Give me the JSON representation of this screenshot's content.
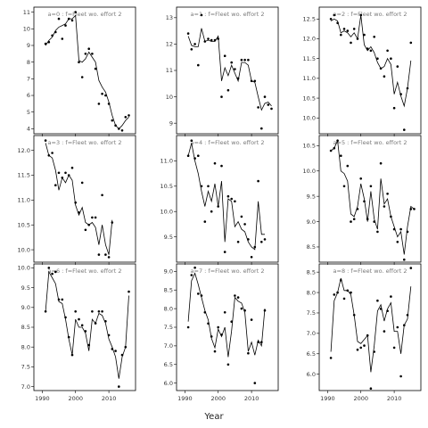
{
  "chart_data": {
    "type": "scatter",
    "xlabel": "Year",
    "x": [
      1991,
      1992,
      1993,
      1994,
      1995,
      1996,
      1997,
      1998,
      1999,
      2000,
      2001,
      2002,
      2003,
      2004,
      2005,
      2006,
      2007,
      2008,
      2009,
      2010,
      2011,
      2012,
      2013,
      2014,
      2015,
      2016
    ],
    "xlim": [
      1987.5,
      2018
    ],
    "xticks": [
      1990,
      2000,
      2010
    ],
    "layout": {
      "rows": 3,
      "cols": 3
    },
    "colors": {
      "points": "#000000",
      "line": "#000000",
      "title": "#7a7a7a",
      "frame": "#000000"
    },
    "panels": [
      {
        "title": "a=0 : f=Fleet wo. effort 2",
        "ylim": [
          3.7,
          11.3
        ],
        "yticks": [
          4,
          5,
          6,
          7,
          8,
          9,
          10,
          11
        ],
        "points": [
          9.1,
          9.2,
          9.6,
          9.8,
          10.6,
          9.4,
          10.2,
          10.6,
          10.5,
          11.0,
          8.0,
          7.1,
          8.5,
          8.8,
          8.5,
          7.6,
          5.5,
          6.1,
          6.0,
          5.5,
          4.5,
          4.2,
          4.0,
          3.9,
          4.7,
          4.8
        ],
        "fit": [
          9.0,
          9.3,
          9.5,
          9.9,
          10.1,
          10.2,
          10.3,
          10.6,
          10.6,
          10.8,
          8.1,
          8.0,
          8.2,
          8.6,
          8.3,
          8.0,
          6.9,
          6.5,
          6.2,
          5.6,
          4.8,
          4.2,
          4.0,
          4.2,
          4.5,
          4.7
        ]
      },
      {
        "title": "a=3 : f=Fleet wo. effort 2",
        "ylim": [
          9.75,
          12.3
        ],
        "yticks": [
          10.0,
          10.5,
          11.0,
          11.5,
          12.0
        ],
        "points": [
          12.2,
          11.9,
          11.95,
          11.3,
          11.55,
          11.45,
          11.55,
          11.5,
          11.65,
          10.95,
          10.75,
          11.35,
          10.4,
          10.5,
          10.65,
          10.65,
          9.9,
          11.1,
          9.9,
          9.85,
          10.55
        ],
        "fit": [
          12.15,
          11.9,
          11.85,
          11.6,
          11.2,
          11.45,
          11.35,
          11.5,
          11.4,
          10.9,
          10.7,
          10.85,
          10.55,
          10.5,
          10.55,
          10.45,
          10.1,
          10.5,
          10.1,
          9.9,
          10.6
        ]
      },
      {
        "title": "a=6 : f=Fleet wo. effort 2",
        "ylim": [
          6.9,
          10.1
        ],
        "yticks": [
          7.0,
          7.5,
          8.0,
          8.5,
          9.0,
          9.5,
          10.0
        ],
        "points": [
          8.9,
          10.0,
          9.85,
          9.9,
          9.2,
          9.2,
          8.75,
          8.25,
          7.8,
          8.9,
          8.7,
          8.55,
          8.4,
          8.05,
          8.9,
          8.6,
          8.9,
          8.9,
          8.65,
          8.3,
          7.95,
          7.9,
          7.0,
          7.8,
          8.0,
          9.4
        ],
        "fit": [
          8.9,
          9.9,
          9.75,
          9.6,
          9.15,
          9.1,
          8.7,
          8.2,
          7.8,
          8.7,
          8.5,
          8.5,
          8.35,
          7.9,
          8.7,
          8.6,
          8.85,
          8.8,
          8.6,
          8.2,
          8.0,
          7.75,
          7.2,
          7.75,
          8.0,
          9.3
        ]
      },
      {
        "title": "a=1 : f=Fleet wo. effort 2",
        "ylim": [
          8.6,
          13.4
        ],
        "yticks": [
          9,
          10,
          11,
          12,
          13
        ],
        "points": [
          12.4,
          11.8,
          12.0,
          11.2,
          13.1,
          12.1,
          12.2,
          12.15,
          12.15,
          12.2,
          10.0,
          11.55,
          10.25,
          11.3,
          11.05,
          10.7,
          11.4,
          11.4,
          11.4,
          10.6,
          10.6,
          9.6,
          8.8,
          10.0,
          9.7,
          9.55
        ],
        "fit": [
          12.3,
          11.95,
          11.9,
          11.9,
          12.6,
          12.1,
          12.15,
          12.1,
          12.1,
          12.3,
          10.6,
          11.1,
          10.8,
          11.2,
          10.9,
          10.6,
          11.3,
          11.3,
          11.2,
          10.6,
          10.55,
          10.0,
          9.5,
          9.75,
          9.8,
          9.65
        ]
      },
      {
        "title": "a=4 : f=Fleet wo. effort 2",
        "ylim": [
          9.0,
          11.5
        ],
        "yticks": [
          9.5,
          10.0,
          10.5,
          11.0
        ],
        "points": [
          11.1,
          11.4,
          11.05,
          11.1,
          10.5,
          9.8,
          10.5,
          10.0,
          10.95,
          10.1,
          10.9,
          9.2,
          10.3,
          10.25,
          10.2,
          9.4,
          9.9,
          9.75,
          9.45,
          9.1,
          9.3,
          10.6,
          9.4,
          9.45
        ],
        "fit": [
          11.1,
          11.35,
          11.0,
          10.75,
          10.4,
          10.1,
          10.4,
          10.2,
          10.55,
          10.1,
          10.6,
          9.4,
          10.25,
          10.2,
          9.7,
          9.8,
          9.65,
          9.6,
          9.4,
          9.3,
          9.25,
          10.2,
          9.55,
          9.55
        ]
      },
      {
        "title": "a=7 : f=Fleet wo. effort 2",
        "ylim": [
          5.8,
          9.2
        ],
        "yticks": [
          6.0,
          6.5,
          7.0,
          7.5,
          8.0,
          8.5,
          9.0
        ],
        "points": [
          7.5,
          8.9,
          9.1,
          8.4,
          8.35,
          7.9,
          7.6,
          7.25,
          6.85,
          7.5,
          7.3,
          7.9,
          6.5,
          7.65,
          8.35,
          8.3,
          8.0,
          7.95,
          6.8,
          7.7,
          6.0,
          7.1,
          7.1,
          7.95
        ],
        "fit": [
          7.65,
          8.75,
          8.95,
          8.65,
          8.3,
          7.95,
          7.7,
          7.2,
          6.95,
          7.45,
          7.25,
          7.5,
          6.7,
          7.4,
          8.3,
          8.2,
          8.15,
          7.9,
          6.85,
          7.1,
          6.75,
          7.15,
          7.0,
          8.0
        ]
      },
      {
        "title": "a=2 : f=Fleet wo. effort 2",
        "ylim": [
          9.6,
          12.8
        ],
        "yticks": [
          10.0,
          10.5,
          11.0,
          11.5,
          12.0,
          12.5
        ],
        "points": [
          12.5,
          12.6,
          12.4,
          12.1,
          12.25,
          12.2,
          11.9,
          12.25,
          12.0,
          12.6,
          12.1,
          11.75,
          11.7,
          12.05,
          11.5,
          11.25,
          11.05,
          11.7,
          11.5,
          10.25,
          11.3,
          10.6,
          9.7,
          10.75,
          11.9
        ],
        "fit": [
          12.45,
          12.5,
          12.45,
          12.15,
          12.2,
          12.15,
          12.05,
          12.15,
          12.0,
          12.6,
          11.85,
          11.7,
          11.8,
          11.65,
          11.4,
          11.25,
          11.3,
          11.5,
          11.35,
          10.6,
          10.9,
          10.55,
          10.3,
          10.75,
          11.45
        ]
      },
      {
        "title": "a=5 : f=Fleet wo. effort 2",
        "ylim": [
          8.2,
          10.7
        ],
        "yticks": [
          8.5,
          9.0,
          9.5,
          10.0,
          10.5
        ],
        "points": [
          10.4,
          10.45,
          10.6,
          10.3,
          9.7,
          10.1,
          9.0,
          9.05,
          9.25,
          9.85,
          9.4,
          9.05,
          9.7,
          9.0,
          8.8,
          10.15,
          9.3,
          9.55,
          9.1,
          8.85,
          8.6,
          8.85,
          8.25,
          8.8,
          9.25,
          9.25
        ],
        "fit": [
          10.4,
          10.45,
          10.6,
          10.0,
          9.95,
          9.8,
          9.15,
          9.1,
          9.3,
          9.75,
          9.45,
          9.0,
          9.6,
          9.05,
          8.85,
          9.85,
          9.35,
          9.45,
          9.1,
          8.9,
          8.7,
          8.8,
          8.35,
          8.9,
          9.3,
          9.25
        ]
      },
      {
        "title": "a=8 : f=Fleet wo. effort 2",
        "ylim": [
          5.6,
          8.7
        ],
        "yticks": [
          6.0,
          6.5,
          7.0,
          7.5,
          8.0,
          8.5
        ],
        "points": [
          6.4,
          7.95,
          8.0,
          8.3,
          7.85,
          8.05,
          8.0,
          7.45,
          6.6,
          6.65,
          6.7,
          6.95,
          5.65,
          6.55,
          7.8,
          7.6,
          7.05,
          7.55,
          7.9,
          6.65,
          7.15,
          5.95,
          7.2,
          7.45,
          8.6
        ],
        "fit": [
          6.55,
          7.8,
          8.0,
          8.35,
          8.05,
          8.05,
          7.95,
          7.45,
          6.8,
          6.75,
          6.85,
          6.95,
          6.05,
          6.7,
          7.55,
          7.7,
          7.3,
          7.6,
          7.75,
          7.05,
          7.05,
          6.5,
          7.2,
          7.35,
          8.15
        ]
      }
    ]
  }
}
